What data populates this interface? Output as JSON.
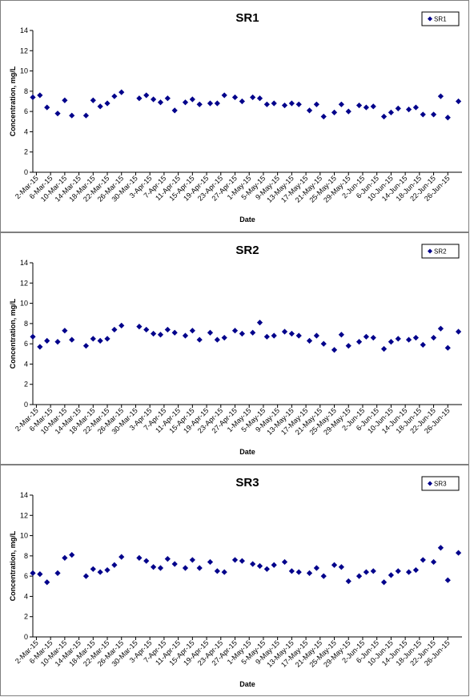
{
  "chart_data": [
    {
      "type": "scatter",
      "title": "SR1",
      "xlabel": "Date",
      "ylabel": "Concentration, mg/L",
      "ylim": [
        0,
        14
      ],
      "yticks": [
        0,
        2,
        4,
        6,
        8,
        10,
        12,
        14
      ],
      "legend": "top-right",
      "x_range": [
        "2015-03-01",
        "2015-06-30"
      ],
      "tick_labels": [
        "2-Mar-15",
        "6-Mar-15",
        "10-Mar-15",
        "14-Mar-15",
        "18-Mar-15",
        "22-Mar-15",
        "26-Mar-15",
        "30-Mar-15",
        "3-Apr-15",
        "7-Apr-15",
        "11-Apr-15",
        "15-Apr-15",
        "19-Apr-15",
        "23-Apr-15",
        "27-Apr-15",
        "1-May-15",
        "5-May-15",
        "9-May-15",
        "13-May-15",
        "17-May-15",
        "21-May-15",
        "25-May-15",
        "29-May-15",
        "2-Jun-15",
        "6-Jun-15",
        "10-Jun-15",
        "14-Jun-15",
        "18-Jun-15",
        "22-Jun-15",
        "26-Jun-15"
      ],
      "tick_dates": [
        "2015-03-02",
        "2015-03-06",
        "2015-03-10",
        "2015-03-14",
        "2015-03-18",
        "2015-03-22",
        "2015-03-26",
        "2015-03-30",
        "2015-04-03",
        "2015-04-07",
        "2015-04-11",
        "2015-04-15",
        "2015-04-19",
        "2015-04-23",
        "2015-04-27",
        "2015-05-01",
        "2015-05-05",
        "2015-05-09",
        "2015-05-13",
        "2015-05-17",
        "2015-05-21",
        "2015-05-25",
        "2015-05-29",
        "2015-06-02",
        "2015-06-06",
        "2015-06-10",
        "2015-06-14",
        "2015-06-18",
        "2015-06-22",
        "2015-06-26"
      ],
      "series": [
        {
          "name": "SR1",
          "color": "#00008b",
          "points": [
            {
              "x": "2015-03-01",
              "y": 7.4
            },
            {
              "x": "2015-03-03",
              "y": 7.6
            },
            {
              "x": "2015-03-05",
              "y": 6.4
            },
            {
              "x": "2015-03-08",
              "y": 5.8
            },
            {
              "x": "2015-03-10",
              "y": 7.1
            },
            {
              "x": "2015-03-12",
              "y": 5.6
            },
            {
              "x": "2015-03-16",
              "y": 5.6
            },
            {
              "x": "2015-03-18",
              "y": 7.1
            },
            {
              "x": "2015-03-20",
              "y": 6.5
            },
            {
              "x": "2015-03-22",
              "y": 6.8
            },
            {
              "x": "2015-03-24",
              "y": 7.5
            },
            {
              "x": "2015-03-26",
              "y": 7.9
            },
            {
              "x": "2015-03-31",
              "y": 7.3
            },
            {
              "x": "2015-04-02",
              "y": 7.6
            },
            {
              "x": "2015-04-04",
              "y": 7.2
            },
            {
              "x": "2015-04-06",
              "y": 6.9
            },
            {
              "x": "2015-04-08",
              "y": 7.3
            },
            {
              "x": "2015-04-10",
              "y": 6.1
            },
            {
              "x": "2015-04-13",
              "y": 6.9
            },
            {
              "x": "2015-04-15",
              "y": 7.2
            },
            {
              "x": "2015-04-17",
              "y": 6.7
            },
            {
              "x": "2015-04-20",
              "y": 6.8
            },
            {
              "x": "2015-04-22",
              "y": 6.8
            },
            {
              "x": "2015-04-24",
              "y": 7.6
            },
            {
              "x": "2015-04-27",
              "y": 7.4
            },
            {
              "x": "2015-04-29",
              "y": 7.0
            },
            {
              "x": "2015-05-02",
              "y": 7.4
            },
            {
              "x": "2015-05-04",
              "y": 7.3
            },
            {
              "x": "2015-05-06",
              "y": 6.7
            },
            {
              "x": "2015-05-08",
              "y": 6.8
            },
            {
              "x": "2015-05-11",
              "y": 6.6
            },
            {
              "x": "2015-05-13",
              "y": 6.8
            },
            {
              "x": "2015-05-15",
              "y": 6.7
            },
            {
              "x": "2015-05-18",
              "y": 6.1
            },
            {
              "x": "2015-05-20",
              "y": 6.7
            },
            {
              "x": "2015-05-22",
              "y": 5.5
            },
            {
              "x": "2015-05-25",
              "y": 5.9
            },
            {
              "x": "2015-05-27",
              "y": 6.7
            },
            {
              "x": "2015-05-29",
              "y": 6.0
            },
            {
              "x": "2015-06-01",
              "y": 6.6
            },
            {
              "x": "2015-06-03",
              "y": 6.4
            },
            {
              "x": "2015-06-05",
              "y": 6.5
            },
            {
              "x": "2015-06-08",
              "y": 5.5
            },
            {
              "x": "2015-06-10",
              "y": 5.9
            },
            {
              "x": "2015-06-12",
              "y": 6.3
            },
            {
              "x": "2015-06-15",
              "y": 6.2
            },
            {
              "x": "2015-06-17",
              "y": 6.4
            },
            {
              "x": "2015-06-19",
              "y": 5.7
            },
            {
              "x": "2015-06-22",
              "y": 5.7
            },
            {
              "x": "2015-06-24",
              "y": 7.5
            },
            {
              "x": "2015-06-26",
              "y": 5.4
            },
            {
              "x": "2015-06-29",
              "y": 7.0
            }
          ]
        }
      ]
    },
    {
      "type": "scatter",
      "title": "SR2",
      "xlabel": "Date",
      "ylabel": "Concentration, mg/L",
      "ylim": [
        0,
        14
      ],
      "yticks": [
        0,
        2,
        4,
        6,
        8,
        10,
        12,
        14
      ],
      "legend": "top-right",
      "x_range": [
        "2015-03-01",
        "2015-06-30"
      ],
      "tick_labels": [
        "2-Mar-15",
        "6-Mar-15",
        "10-Mar-15",
        "14-Mar-15",
        "18-Mar-15",
        "22-Mar-15",
        "26-Mar-15",
        "30-Mar-15",
        "3-Apr-15",
        "7-Apr-15",
        "11-Apr-15",
        "15-Apr-15",
        "19-Apr-15",
        "23-Apr-15",
        "27-Apr-15",
        "1-May-15",
        "5-May-15",
        "9-May-15",
        "13-May-15",
        "17-May-15",
        "21-May-15",
        "25-May-15",
        "29-May-15",
        "2-Jun-15",
        "6-Jun-15",
        "10-Jun-15",
        "14-Jun-15",
        "18-Jun-15",
        "22-Jun-15",
        "26-Jun-15"
      ],
      "tick_dates": [
        "2015-03-02",
        "2015-03-06",
        "2015-03-10",
        "2015-03-14",
        "2015-03-18",
        "2015-03-22",
        "2015-03-26",
        "2015-03-30",
        "2015-04-03",
        "2015-04-07",
        "2015-04-11",
        "2015-04-15",
        "2015-04-19",
        "2015-04-23",
        "2015-04-27",
        "2015-05-01",
        "2015-05-05",
        "2015-05-09",
        "2015-05-13",
        "2015-05-17",
        "2015-05-21",
        "2015-05-25",
        "2015-05-29",
        "2015-06-02",
        "2015-06-06",
        "2015-06-10",
        "2015-06-14",
        "2015-06-18",
        "2015-06-22",
        "2015-06-26"
      ],
      "series": [
        {
          "name": "SR2",
          "color": "#00008b",
          "points": [
            {
              "x": "2015-03-01",
              "y": 6.7
            },
            {
              "x": "2015-03-03",
              "y": 5.7
            },
            {
              "x": "2015-03-05",
              "y": 6.3
            },
            {
              "x": "2015-03-08",
              "y": 6.2
            },
            {
              "x": "2015-03-10",
              "y": 7.3
            },
            {
              "x": "2015-03-12",
              "y": 6.4
            },
            {
              "x": "2015-03-16",
              "y": 5.8
            },
            {
              "x": "2015-03-18",
              "y": 6.5
            },
            {
              "x": "2015-03-20",
              "y": 6.3
            },
            {
              "x": "2015-03-22",
              "y": 6.5
            },
            {
              "x": "2015-03-24",
              "y": 7.4
            },
            {
              "x": "2015-03-26",
              "y": 7.8
            },
            {
              "x": "2015-03-31",
              "y": 7.7
            },
            {
              "x": "2015-04-02",
              "y": 7.4
            },
            {
              "x": "2015-04-04",
              "y": 7.0
            },
            {
              "x": "2015-04-06",
              "y": 6.9
            },
            {
              "x": "2015-04-08",
              "y": 7.4
            },
            {
              "x": "2015-04-10",
              "y": 7.1
            },
            {
              "x": "2015-04-13",
              "y": 6.8
            },
            {
              "x": "2015-04-15",
              "y": 7.3
            },
            {
              "x": "2015-04-17",
              "y": 6.4
            },
            {
              "x": "2015-04-20",
              "y": 7.1
            },
            {
              "x": "2015-04-22",
              "y": 6.4
            },
            {
              "x": "2015-04-24",
              "y": 6.6
            },
            {
              "x": "2015-04-27",
              "y": 7.3
            },
            {
              "x": "2015-04-29",
              "y": 7.0
            },
            {
              "x": "2015-05-02",
              "y": 7.1
            },
            {
              "x": "2015-05-04",
              "y": 8.1
            },
            {
              "x": "2015-05-06",
              "y": 6.7
            },
            {
              "x": "2015-05-08",
              "y": 6.8
            },
            {
              "x": "2015-05-11",
              "y": 7.2
            },
            {
              "x": "2015-05-13",
              "y": 7.0
            },
            {
              "x": "2015-05-15",
              "y": 6.8
            },
            {
              "x": "2015-05-18",
              "y": 6.3
            },
            {
              "x": "2015-05-20",
              "y": 6.8
            },
            {
              "x": "2015-05-22",
              "y": 6.0
            },
            {
              "x": "2015-05-25",
              "y": 5.4
            },
            {
              "x": "2015-05-27",
              "y": 6.9
            },
            {
              "x": "2015-05-29",
              "y": 5.8
            },
            {
              "x": "2015-06-01",
              "y": 6.2
            },
            {
              "x": "2015-06-03",
              "y": 6.7
            },
            {
              "x": "2015-06-05",
              "y": 6.6
            },
            {
              "x": "2015-06-08",
              "y": 5.5
            },
            {
              "x": "2015-06-10",
              "y": 6.2
            },
            {
              "x": "2015-06-12",
              "y": 6.5
            },
            {
              "x": "2015-06-15",
              "y": 6.4
            },
            {
              "x": "2015-06-17",
              "y": 6.6
            },
            {
              "x": "2015-06-19",
              "y": 5.9
            },
            {
              "x": "2015-06-22",
              "y": 6.6
            },
            {
              "x": "2015-06-24",
              "y": 7.5
            },
            {
              "x": "2015-06-26",
              "y": 5.6
            },
            {
              "x": "2015-06-29",
              "y": 7.2
            }
          ]
        }
      ]
    },
    {
      "type": "scatter",
      "title": "SR3",
      "xlabel": "Date",
      "ylabel": "Concentration, mg/L",
      "ylim": [
        0,
        14
      ],
      "yticks": [
        0,
        2,
        4,
        6,
        8,
        10,
        12,
        14
      ],
      "legend": "top-right",
      "x_range": [
        "2015-03-01",
        "2015-06-30"
      ],
      "tick_labels": [
        "2-Mar-15",
        "6-Mar-15",
        "10-Mar-15",
        "14-Mar-15",
        "18-Mar-15",
        "22-Mar-15",
        "26-Mar-15",
        "30-Mar-15",
        "3-Apr-15",
        "7-Apr-15",
        "11-Apr-15",
        "15-Apr-15",
        "19-Apr-15",
        "23-Apr-15",
        "27-Apr-15",
        "1-May-15",
        "5-May-15",
        "9-May-15",
        "13-May-15",
        "17-May-15",
        "21-May-15",
        "25-May-15",
        "29-May-15",
        "2-Jun-15",
        "6-Jun-15",
        "10-Jun-15",
        "14-Jun-15",
        "18-Jun-15",
        "22-Jun-15",
        "26-Jun-15"
      ],
      "tick_dates": [
        "2015-03-02",
        "2015-03-06",
        "2015-03-10",
        "2015-03-14",
        "2015-03-18",
        "2015-03-22",
        "2015-03-26",
        "2015-03-30",
        "2015-04-03",
        "2015-04-07",
        "2015-04-11",
        "2015-04-15",
        "2015-04-19",
        "2015-04-23",
        "2015-04-27",
        "2015-05-01",
        "2015-05-05",
        "2015-05-09",
        "2015-05-13",
        "2015-05-17",
        "2015-05-21",
        "2015-05-25",
        "2015-05-29",
        "2015-06-02",
        "2015-06-06",
        "2015-06-10",
        "2015-06-14",
        "2015-06-18",
        "2015-06-22",
        "2015-06-26"
      ],
      "series": [
        {
          "name": "SR3",
          "color": "#00008b",
          "points": [
            {
              "x": "2015-03-01",
              "y": 6.3
            },
            {
              "x": "2015-03-03",
              "y": 6.2
            },
            {
              "x": "2015-03-05",
              "y": 5.4
            },
            {
              "x": "2015-03-08",
              "y": 6.3
            },
            {
              "x": "2015-03-10",
              "y": 7.8
            },
            {
              "x": "2015-03-12",
              "y": 8.1
            },
            {
              "x": "2015-03-16",
              "y": 6.0
            },
            {
              "x": "2015-03-18",
              "y": 6.7
            },
            {
              "x": "2015-03-20",
              "y": 6.4
            },
            {
              "x": "2015-03-22",
              "y": 6.6
            },
            {
              "x": "2015-03-24",
              "y": 7.1
            },
            {
              "x": "2015-03-26",
              "y": 7.9
            },
            {
              "x": "2015-03-31",
              "y": 7.8
            },
            {
              "x": "2015-04-02",
              "y": 7.5
            },
            {
              "x": "2015-04-04",
              "y": 6.9
            },
            {
              "x": "2015-04-06",
              "y": 6.8
            },
            {
              "x": "2015-04-08",
              "y": 7.7
            },
            {
              "x": "2015-04-10",
              "y": 7.2
            },
            {
              "x": "2015-04-13",
              "y": 6.8
            },
            {
              "x": "2015-04-15",
              "y": 7.6
            },
            {
              "x": "2015-04-17",
              "y": 6.8
            },
            {
              "x": "2015-04-20",
              "y": 7.4
            },
            {
              "x": "2015-04-22",
              "y": 6.5
            },
            {
              "x": "2015-04-24",
              "y": 6.4
            },
            {
              "x": "2015-04-27",
              "y": 7.6
            },
            {
              "x": "2015-04-29",
              "y": 7.5
            },
            {
              "x": "2015-05-02",
              "y": 7.2
            },
            {
              "x": "2015-05-04",
              "y": 7.0
            },
            {
              "x": "2015-05-06",
              "y": 6.7
            },
            {
              "x": "2015-05-08",
              "y": 7.1
            },
            {
              "x": "2015-05-11",
              "y": 7.4
            },
            {
              "x": "2015-05-13",
              "y": 6.5
            },
            {
              "x": "2015-05-15",
              "y": 6.4
            },
            {
              "x": "2015-05-18",
              "y": 6.3
            },
            {
              "x": "2015-05-20",
              "y": 6.8
            },
            {
              "x": "2015-05-22",
              "y": 6.0
            },
            {
              "x": "2015-05-25",
              "y": 7.1
            },
            {
              "x": "2015-05-27",
              "y": 6.9
            },
            {
              "x": "2015-05-29",
              "y": 5.5
            },
            {
              "x": "2015-06-01",
              "y": 6.0
            },
            {
              "x": "2015-06-03",
              "y": 6.4
            },
            {
              "x": "2015-06-05",
              "y": 6.5
            },
            {
              "x": "2015-06-08",
              "y": 5.4
            },
            {
              "x": "2015-06-10",
              "y": 6.1
            },
            {
              "x": "2015-06-12",
              "y": 6.5
            },
            {
              "x": "2015-06-15",
              "y": 6.4
            },
            {
              "x": "2015-06-17",
              "y": 6.6
            },
            {
              "x": "2015-06-19",
              "y": 7.6
            },
            {
              "x": "2015-06-22",
              "y": 7.4
            },
            {
              "x": "2015-06-24",
              "y": 8.8
            },
            {
              "x": "2015-06-26",
              "y": 5.6
            },
            {
              "x": "2015-06-29",
              "y": 8.3
            }
          ]
        }
      ]
    }
  ]
}
